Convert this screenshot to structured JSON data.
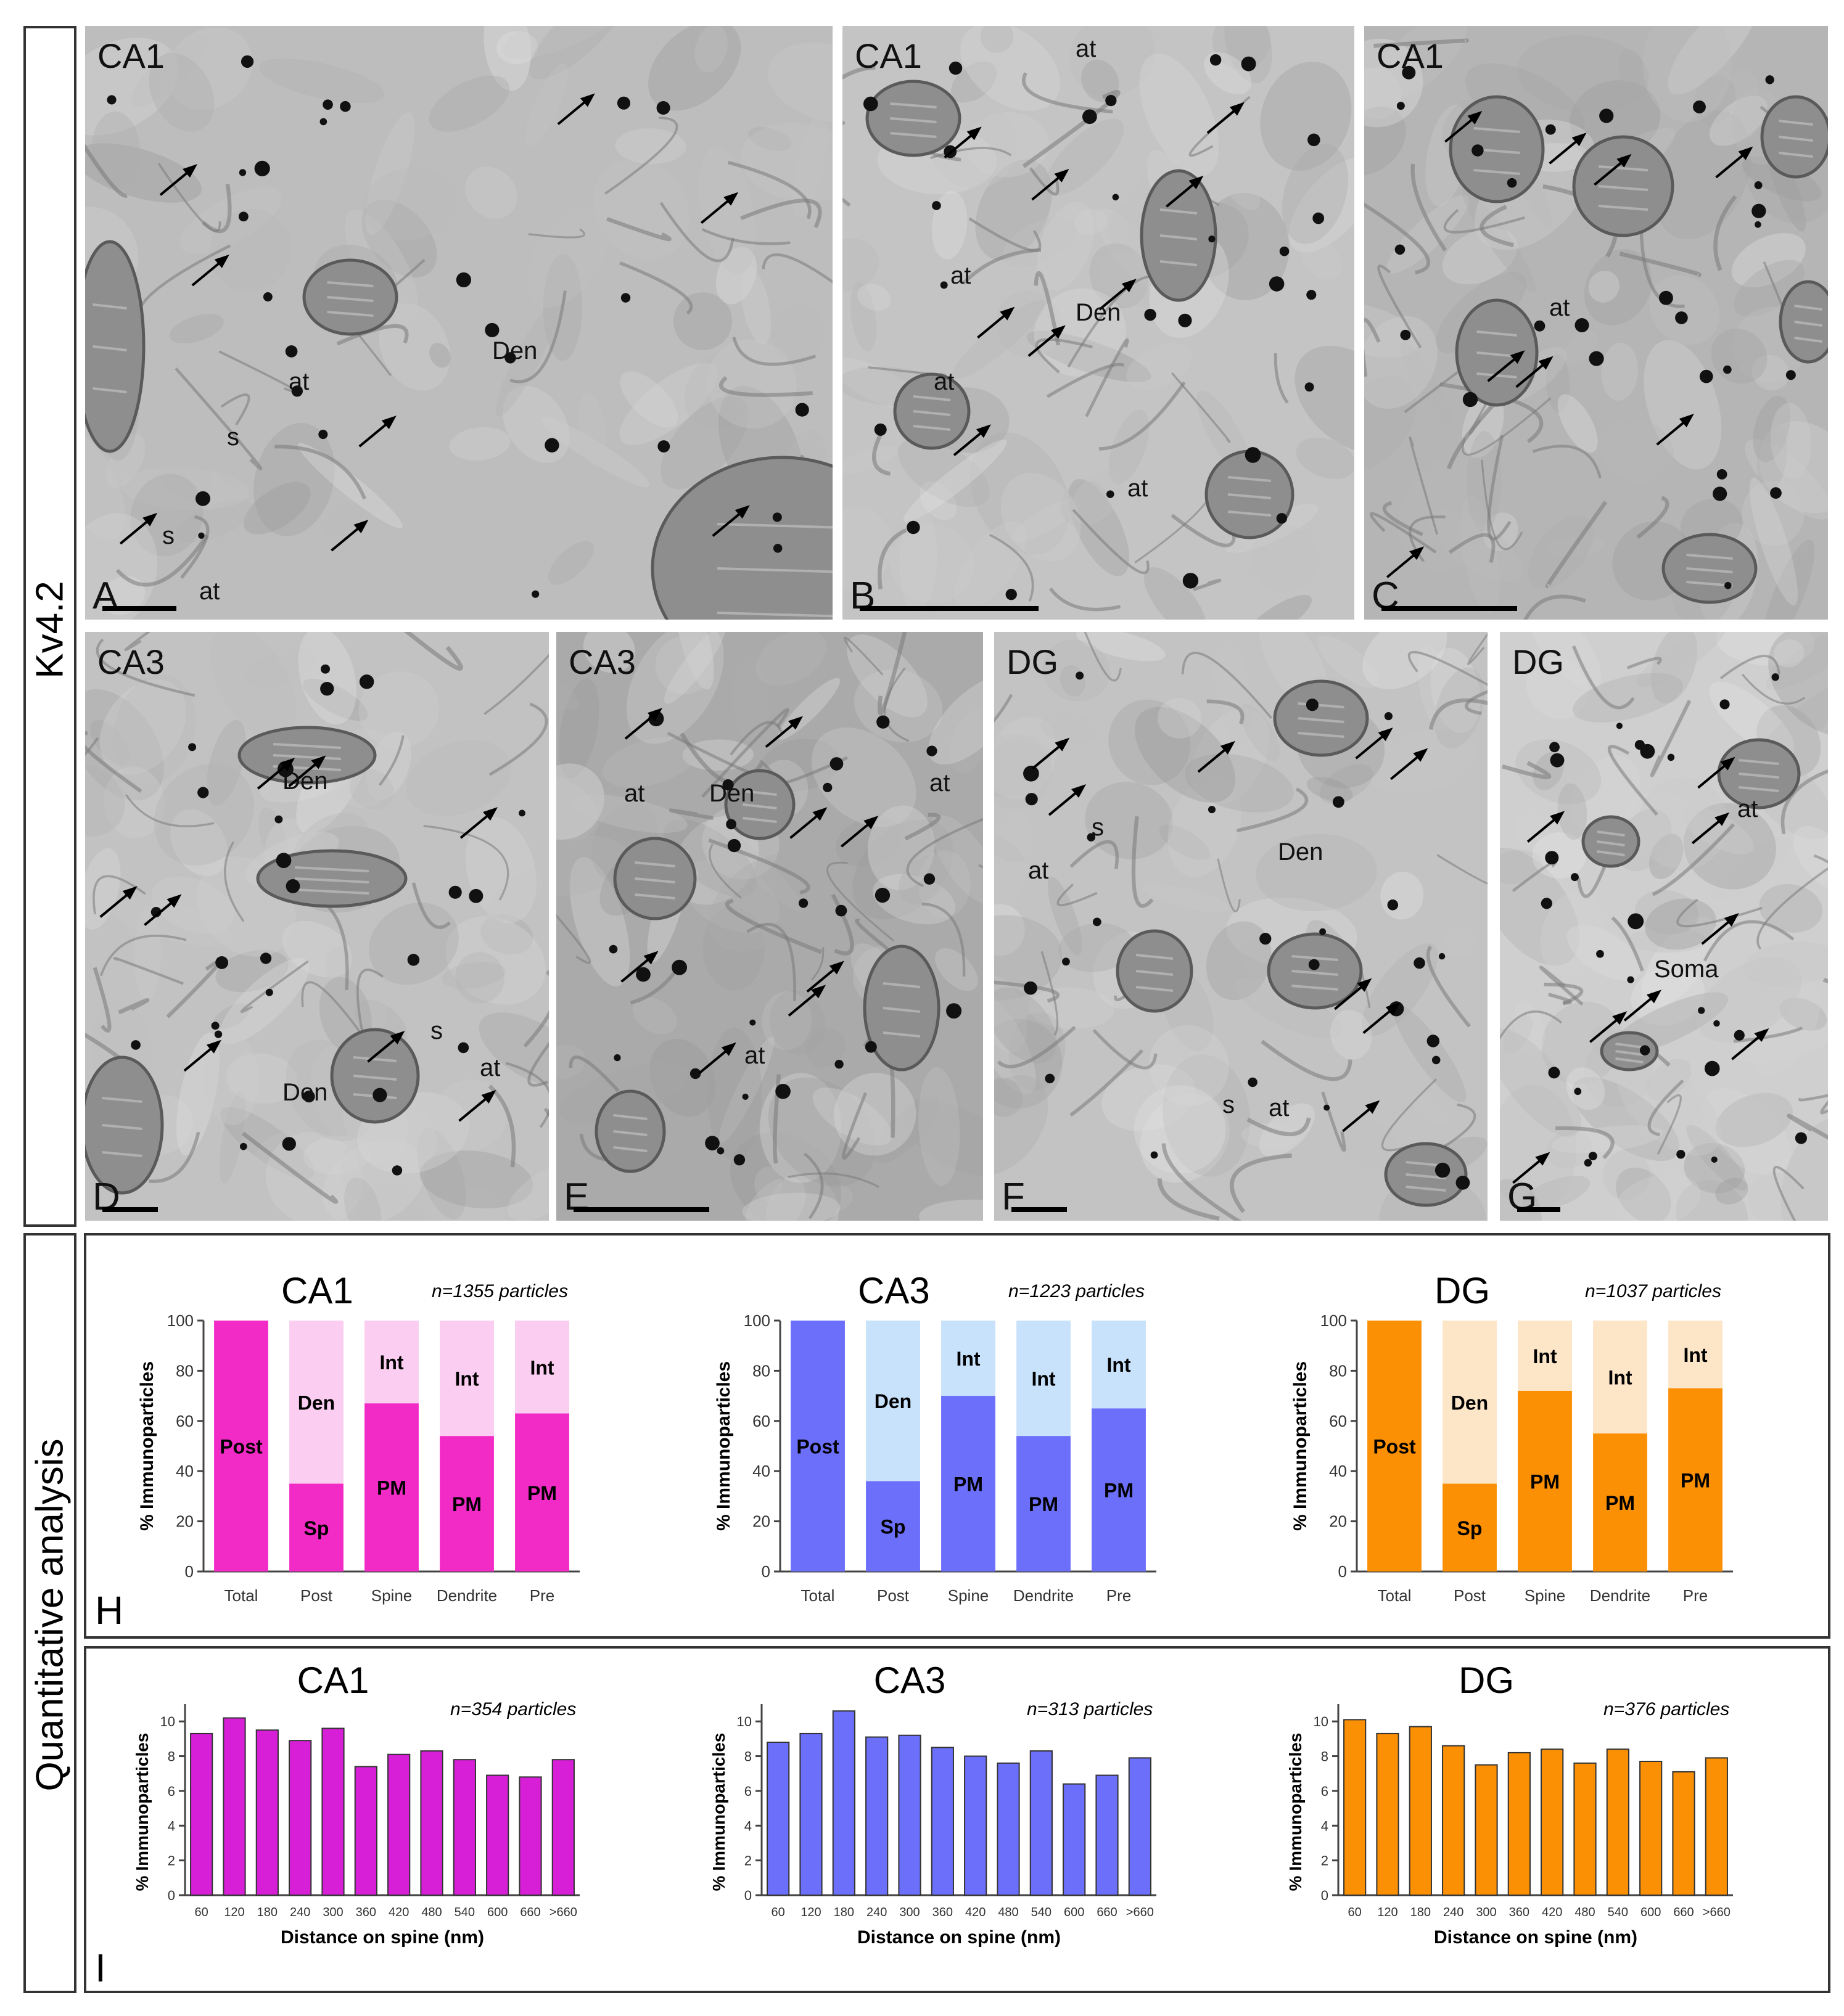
{
  "side_labels": {
    "top": "Kv4.2",
    "bottom": "Quantitative analysis"
  },
  "panels": [
    {
      "letter": "A",
      "region": "CA1",
      "labels": [
        "Den",
        "at",
        "s",
        "s",
        "at"
      ]
    },
    {
      "letter": "B",
      "region": "CA1",
      "labels": [
        "at",
        "at",
        "Den",
        "at",
        "at"
      ]
    },
    {
      "letter": "C",
      "region": "CA1",
      "labels": [
        "at"
      ]
    },
    {
      "letter": "D",
      "region": "CA3",
      "labels": [
        "Den",
        "Den",
        "s",
        "at"
      ]
    },
    {
      "letter": "E",
      "region": "CA3",
      "labels": [
        "at",
        "Den",
        "at",
        "at"
      ]
    },
    {
      "letter": "F",
      "region": "DG",
      "labels": [
        "Den",
        "s",
        "at",
        "s",
        "at"
      ]
    },
    {
      "letter": "G",
      "region": "DG",
      "labels": [
        "at",
        "Soma"
      ]
    }
  ],
  "section_letters": {
    "stacked": "H",
    "histogram": "I"
  },
  "chart_data": [
    {
      "type": "bar",
      "stacked": true,
      "title": "CA1",
      "subtitle": "n=1355 particles",
      "color": "#f22bc6",
      "light_color": "#fbcdf0",
      "ylabel": "% Immunoparticles",
      "ylim": [
        0,
        100
      ],
      "yticks": [
        "0",
        "20",
        "40",
        "60",
        "80",
        "100"
      ],
      "categories": [
        "Total",
        "Post",
        "Spine",
        "Dendrite",
        "Pre"
      ],
      "bottom_values": [
        100,
        35,
        67,
        54,
        63
      ],
      "bottom_labels": [
        "Post",
        "Sp",
        "PM",
        "PM",
        "PM"
      ],
      "top_labels": [
        "",
        "Den",
        "Int",
        "Int",
        "Int"
      ]
    },
    {
      "type": "bar",
      "stacked": true,
      "title": "CA3",
      "subtitle": "n=1223 particles",
      "color": "#6c6ffa",
      "light_color": "#c8e2fb",
      "ylabel": "% Immunoparticles",
      "ylim": [
        0,
        100
      ],
      "yticks": [
        "0",
        "20",
        "40",
        "60",
        "80",
        "100"
      ],
      "categories": [
        "Total",
        "Post",
        "Spine",
        "Dendrite",
        "Pre"
      ],
      "bottom_values": [
        100,
        36,
        70,
        54,
        65
      ],
      "bottom_labels": [
        "Post",
        "Sp",
        "PM",
        "PM",
        "PM"
      ],
      "top_labels": [
        "",
        "Den",
        "Int",
        "Int",
        "Int"
      ]
    },
    {
      "type": "bar",
      "stacked": true,
      "title": "DG",
      "subtitle": "n=1037 particles",
      "color": "#fb9005",
      "light_color": "#fde5c8",
      "ylabel": "% Immunoparticles",
      "ylim": [
        0,
        100
      ],
      "yticks": [
        "0",
        "20",
        "40",
        "60",
        "80",
        "100"
      ],
      "categories": [
        "Total",
        "Post",
        "Spine",
        "Dendrite",
        "Pre"
      ],
      "bottom_values": [
        100,
        35,
        72,
        55,
        73
      ],
      "bottom_labels": [
        "Post",
        "Sp",
        "PM",
        "PM",
        "PM"
      ],
      "top_labels": [
        "",
        "Den",
        "Int",
        "Int",
        "Int"
      ]
    },
    {
      "type": "bar",
      "title": "CA1",
      "subtitle": "n=354 particles",
      "color": "#d81fd8",
      "xlabel": "Distance on spine (nm)",
      "ylabel": "% Immunoparticles",
      "ylim": [
        0,
        11
      ],
      "yticks": [
        "0",
        "2",
        "4",
        "6",
        "8",
        "10"
      ],
      "categories": [
        "60",
        "120",
        "180",
        "240",
        "300",
        "360",
        "420",
        "480",
        "540",
        "600",
        "660",
        ">660"
      ],
      "values": [
        9.3,
        10.2,
        9.5,
        8.9,
        9.6,
        7.4,
        8.1,
        8.3,
        7.8,
        6.9,
        6.8,
        7.8
      ]
    },
    {
      "type": "bar",
      "title": "CA3",
      "subtitle": "n=313 particles",
      "color": "#6c6ffa",
      "xlabel": "Distance on spine (nm)",
      "ylabel": "% Immunoparticles",
      "ylim": [
        0,
        11
      ],
      "yticks": [
        "0",
        "2",
        "4",
        "6",
        "8",
        "10"
      ],
      "categories": [
        "60",
        "120",
        "180",
        "240",
        "300",
        "360",
        "420",
        "480",
        "540",
        "600",
        "660",
        ">660"
      ],
      "values": [
        8.8,
        9.3,
        10.6,
        9.1,
        9.2,
        8.5,
        8.0,
        7.6,
        8.3,
        6.4,
        6.9,
        7.9
      ]
    },
    {
      "type": "bar",
      "title": "DG",
      "subtitle": "n=376 particles",
      "color": "#fb9005",
      "xlabel": "Distance on spine (nm)",
      "ylabel": "% Immunoparticles",
      "ylim": [
        0,
        11
      ],
      "yticks": [
        "0",
        "2",
        "4",
        "6",
        "8",
        "10"
      ],
      "categories": [
        "60",
        "120",
        "180",
        "240",
        "300",
        "360",
        "420",
        "480",
        "540",
        "600",
        "660",
        ">660"
      ],
      "values": [
        10.1,
        9.3,
        9.7,
        8.6,
        7.5,
        8.2,
        8.4,
        7.6,
        8.4,
        7.7,
        7.1,
        7.9
      ]
    }
  ]
}
